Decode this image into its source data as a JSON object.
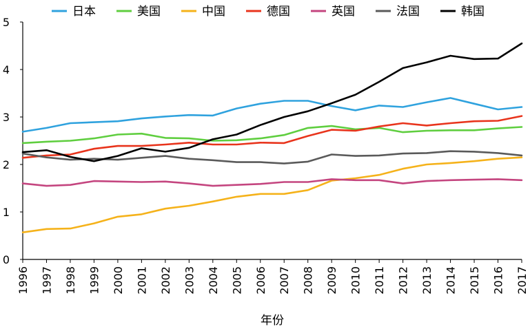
{
  "chart_data": {
    "type": "line",
    "title": "",
    "xlabel": "年份",
    "ylabel": "",
    "ylim": [
      0,
      5
    ],
    "yticks": [
      "0",
      "1",
      "2",
      "3",
      "4",
      "5"
    ],
    "x": [
      "1996",
      "1997",
      "1998",
      "1999",
      "2000",
      "2001",
      "2002",
      "2003",
      "2004",
      "2005",
      "2006",
      "2007",
      "2008",
      "2009",
      "2010",
      "2011",
      "2012",
      "2013",
      "2014",
      "2015",
      "2016",
      "2017"
    ],
    "legend_position": "top",
    "series": [
      {
        "name": "日本",
        "color": "#2fa2de",
        "values": [
          2.69,
          2.77,
          2.87,
          2.89,
          2.91,
          2.97,
          3.01,
          3.04,
          3.03,
          3.18,
          3.28,
          3.34,
          3.34,
          3.23,
          3.14,
          3.24,
          3.21,
          3.31,
          3.4,
          3.28,
          3.16,
          3.21
        ]
      },
      {
        "name": "美国",
        "color": "#5fce3f",
        "values": [
          2.45,
          2.48,
          2.5,
          2.55,
          2.63,
          2.65,
          2.56,
          2.55,
          2.5,
          2.51,
          2.55,
          2.62,
          2.77,
          2.81,
          2.74,
          2.77,
          2.68,
          2.71,
          2.72,
          2.72,
          2.76,
          2.79
        ]
      },
      {
        "name": "中国",
        "color": "#f5b21a",
        "values": [
          0.57,
          0.64,
          0.65,
          0.76,
          0.9,
          0.95,
          1.07,
          1.13,
          1.22,
          1.32,
          1.38,
          1.38,
          1.46,
          1.66,
          1.71,
          1.78,
          1.91,
          2.0,
          2.03,
          2.07,
          2.12,
          2.15
        ]
      },
      {
        "name": "德国",
        "color": "#e8341c",
        "values": [
          2.14,
          2.19,
          2.21,
          2.33,
          2.39,
          2.39,
          2.42,
          2.46,
          2.42,
          2.42,
          2.46,
          2.45,
          2.6,
          2.73,
          2.71,
          2.8,
          2.87,
          2.82,
          2.87,
          2.91,
          2.92,
          3.02
        ]
      },
      {
        "name": "英国",
        "color": "#c4457f",
        "values": [
          1.6,
          1.55,
          1.57,
          1.65,
          1.64,
          1.63,
          1.64,
          1.6,
          1.55,
          1.57,
          1.59,
          1.63,
          1.63,
          1.69,
          1.67,
          1.67,
          1.6,
          1.65,
          1.67,
          1.68,
          1.69,
          1.67
        ]
      },
      {
        "name": "法国",
        "color": "#5a5a5a",
        "values": [
          2.23,
          2.15,
          2.1,
          2.12,
          2.1,
          2.14,
          2.18,
          2.12,
          2.09,
          2.05,
          2.05,
          2.02,
          2.06,
          2.21,
          2.18,
          2.19,
          2.23,
          2.24,
          2.28,
          2.27,
          2.24,
          2.19
        ]
      },
      {
        "name": "韩国",
        "color": "#000000",
        "values": [
          2.26,
          2.3,
          2.16,
          2.07,
          2.18,
          2.34,
          2.27,
          2.35,
          2.53,
          2.63,
          2.83,
          3.0,
          3.12,
          3.29,
          3.47,
          3.74,
          4.03,
          4.15,
          4.29,
          4.22,
          4.23,
          4.55
        ]
      }
    ]
  }
}
